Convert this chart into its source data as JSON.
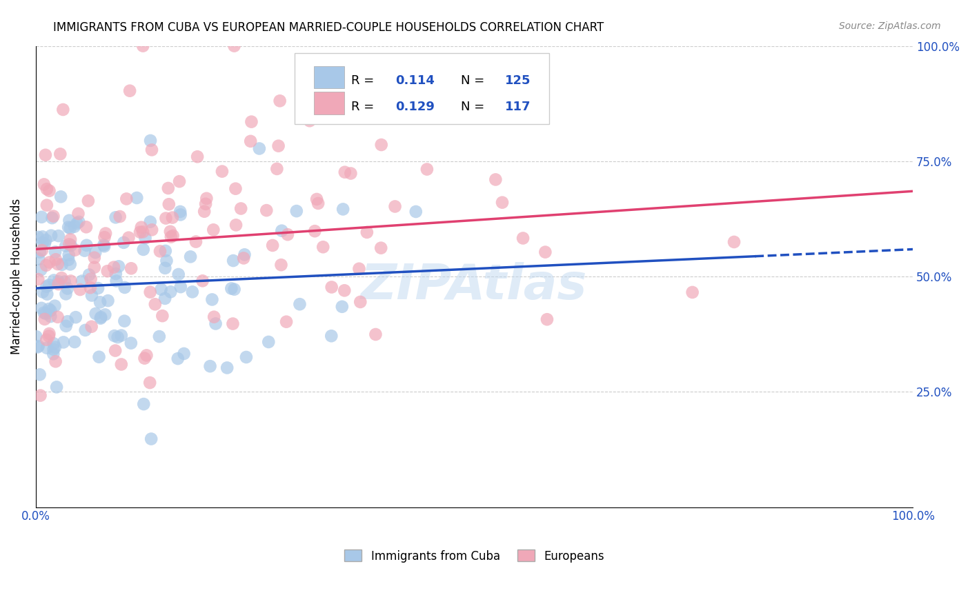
{
  "title": "IMMIGRANTS FROM CUBA VS EUROPEAN MARRIED-COUPLE HOUSEHOLDS CORRELATION CHART",
  "source": "Source: ZipAtlas.com",
  "ylabel": "Married-couple Households",
  "blue_color": "#a8c8e8",
  "pink_color": "#f0a8b8",
  "blue_line_color": "#2050c0",
  "pink_line_color": "#e04070",
  "blue_R": "0.114",
  "blue_N": "125",
  "pink_R": "0.129",
  "pink_N": "117",
  "label_color": "#2050c0",
  "watermark_text": "ZIPAtlas",
  "watermark_color": "#c0d8f0",
  "legend_label_blue": "Immigrants from Cuba",
  "legend_label_pink": "Europeans",
  "xlim": [
    0,
    100
  ],
  "ylim": [
    0,
    100
  ],
  "grid_color": "#cccccc",
  "background_color": "#ffffff",
  "blue_seed": 42,
  "pink_seed": 17
}
